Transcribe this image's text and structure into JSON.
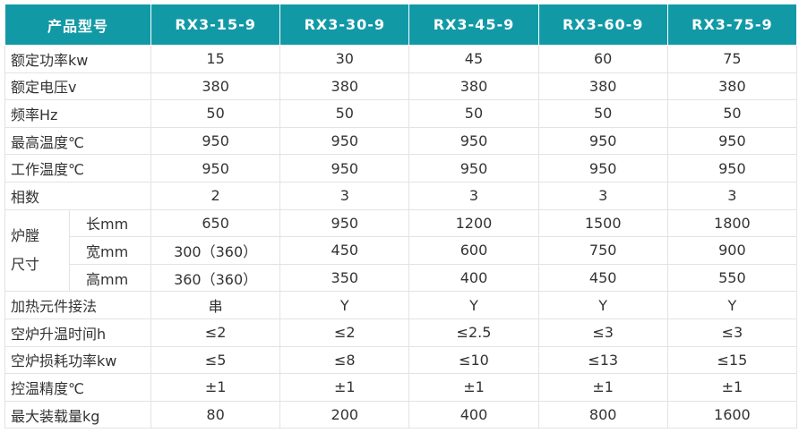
{
  "header": {
    "label": "产品型号",
    "models": [
      "RX3-15-9",
      "RX3-30-9",
      "RX3-45-9",
      "RX3-60-9",
      "RX3-75-9"
    ]
  },
  "rows_top": [
    {
      "label": "额定功率kw",
      "values": [
        "15",
        "30",
        "45",
        "60",
        "75"
      ]
    },
    {
      "label": "额定电压v",
      "values": [
        "380",
        "380",
        "380",
        "380",
        "380"
      ]
    },
    {
      "label": "频率Hz",
      "values": [
        "50",
        "50",
        "50",
        "50",
        "50"
      ]
    },
    {
      "label": "最高温度℃",
      "values": [
        "950",
        "950",
        "950",
        "950",
        "950"
      ]
    },
    {
      "label": "工作温度℃",
      "values": [
        "950",
        "950",
        "950",
        "950",
        "950"
      ]
    },
    {
      "label": "相数",
      "values": [
        "2",
        "3",
        "3",
        "3",
        "3"
      ]
    }
  ],
  "chamber": {
    "label_line1": "炉膛",
    "label_line2": "尺寸",
    "rows": [
      {
        "label": "长mm",
        "values": [
          "650",
          "950",
          "1200",
          "1500",
          "1800"
        ]
      },
      {
        "label": "宽mm",
        "values": [
          "300（360）",
          "450",
          "600",
          "750",
          "900"
        ]
      },
      {
        "label": "高mm",
        "values": [
          "360（360）",
          "350",
          "400",
          "450",
          "550"
        ]
      }
    ]
  },
  "rows_bottom": [
    {
      "label": "加热元件接法",
      "values": [
        "串",
        "Y",
        "Y",
        "Y",
        "Y"
      ]
    },
    {
      "label": "空炉升温时间h",
      "values": [
        "≤2",
        "≤2",
        "≤2.5",
        "≤3",
        "≤3"
      ]
    },
    {
      "label": "空炉损耗功率kw",
      "values": [
        "≤5",
        "≤8",
        "≤10",
        "≤13",
        "≤15"
      ]
    },
    {
      "label": "控温精度℃",
      "values": [
        "±1",
        "±1",
        "±1",
        "±1",
        "±1"
      ]
    },
    {
      "label": "最大装载量kg",
      "values": [
        "80",
        "200",
        "400",
        "800",
        "1600"
      ]
    }
  ],
  "colors": {
    "header_bg": "#1299a6",
    "header_text": "#ffffff",
    "grid": "#e3e3e3"
  }
}
